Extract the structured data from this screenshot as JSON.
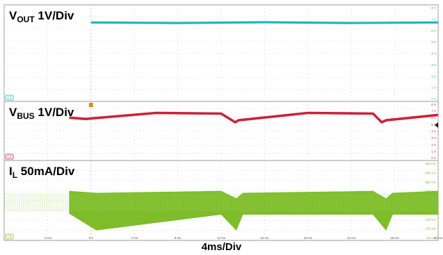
{
  "chart_data": [
    {
      "type": "line",
      "panel": "top",
      "title_main": "V",
      "title_sub": "OUT",
      "title_scale": "1V/Div",
      "channel_badge": "C2",
      "color": "#1fb5bd",
      "ytick_labels": [
        "8 V",
        "7 V",
        "6 V",
        "5 V",
        "4 V",
        "3 V",
        "2 V",
        "1 V",
        "0 V"
      ],
      "ylim": [
        0,
        8
      ],
      "series": [
        {
          "x": [
            0,
            8,
            16,
            24,
            32
          ],
          "y": [
            6.7,
            6.65,
            6.72,
            6.65,
            6.7
          ]
        }
      ]
    },
    {
      "type": "line",
      "panel": "middle",
      "title_main": "V",
      "title_sub": "BUS",
      "title_scale": "1V/Div",
      "channel_badge": "C3",
      "color": "#c8243c",
      "ytick_labels": [
        "8 V",
        "7 V",
        "6 V",
        "5 V",
        "4 V",
        "3 V",
        "2 V",
        "1 V",
        "0 V"
      ],
      "ylim": [
        0,
        8
      ],
      "series": [
        {
          "x": [
            -2,
            -0.5,
            6,
            12,
            13.3,
            13.6,
            20,
            26,
            26.8,
            27.2,
            32
          ],
          "y": [
            6.0,
            5.8,
            6.7,
            6.6,
            5.3,
            5.6,
            6.7,
            6.6,
            5.3,
            5.6,
            6.4
          ]
        }
      ]
    },
    {
      "type": "area",
      "panel": "bottom",
      "title_main": "I",
      "title_sub": "L",
      "title_scale": "50mA/Div",
      "channel_badge": "C4",
      "color": "#7ebc2a",
      "ytick_labels": [
        "450 mA",
        "400 mA",
        "350 mA",
        "300 mA",
        "250 mA",
        "200 mA",
        "150 mA",
        "100 mA",
        "50 mA"
      ],
      "ylim": [
        50,
        450
      ],
      "series": [
        {
          "envelope_x": [
            -2,
            0.5,
            12,
            13.4,
            14,
            26,
            27.2,
            27.8,
            32
          ],
          "y_high": [
            300,
            290,
            300,
            260,
            290,
            300,
            260,
            290,
            300
          ],
          "y_low": [
            180,
            90,
            175,
            90,
            175,
            175,
            90,
            175,
            175
          ]
        }
      ],
      "xtick_labels": [
        "-4 ms",
        "0 s",
        "4 ms",
        "8 ms",
        "12 ms",
        "16 ms",
        "20 ms",
        "24 ms",
        "28 ms",
        "32 ms"
      ],
      "xlim": [
        -8,
        32
      ]
    }
  ],
  "time_axis_label": "4ms/Div"
}
